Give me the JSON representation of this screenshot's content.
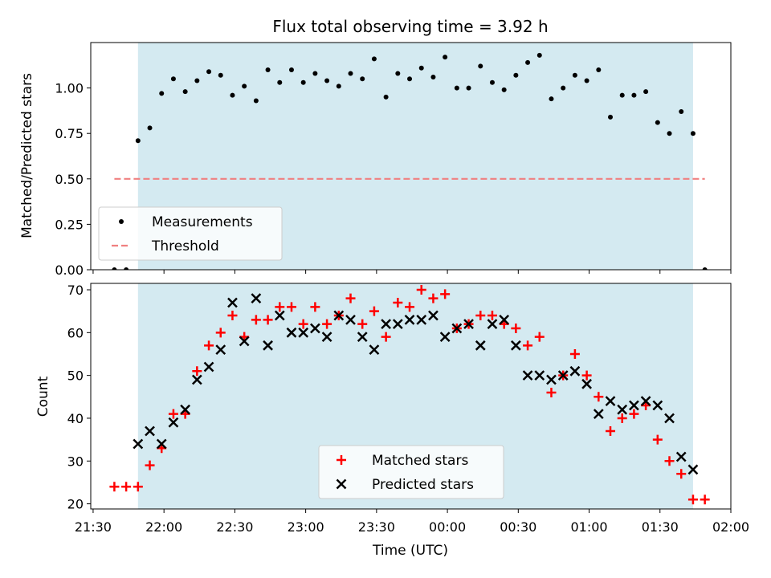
{
  "chart_data": {
    "type": "scatter",
    "title": "Flux total observing time = 3.92 h",
    "xlabel": "Time (UTC)",
    "x_tick_labels": [
      "21:30",
      "22:00",
      "22:30",
      "23:00",
      "23:30",
      "00:00",
      "00:30",
      "01:00",
      "01:30",
      "02:00"
    ],
    "x_unit_note": "minutes after 21:30 UTC",
    "xlim": [
      -1,
      270
    ],
    "shaded_interval": [
      19,
      254
    ],
    "shade_color": "#d4eaf1",
    "panels": [
      {
        "ylabel": "Matched/Predicted stars",
        "ylim": [
          0,
          1.25
        ],
        "y_ticks": [
          0,
          0.25,
          0.5,
          0.75,
          1.0
        ],
        "y_tick_labels": [
          "0.00",
          "0.25",
          "0.50",
          "0.75",
          "1.00"
        ],
        "legend_position": "lower-left",
        "series": [
          {
            "name": "Measurements",
            "marker": "dot",
            "color": "#000000",
            "x": [
              9,
              14,
              19,
              24,
              29,
              34,
              39,
              44,
              49,
              54,
              59,
              64,
              69,
              74,
              79,
              84,
              89,
              94,
              99,
              104,
              109,
              114,
              119,
              124,
              129,
              134,
              139,
              144,
              149,
              154,
              159,
              164,
              169,
              174,
              179,
              184,
              189,
              194,
              199,
              204,
              209,
              214,
              219,
              224,
              229,
              234,
              239,
              244,
              249,
              254,
              259
            ],
            "y": [
              0,
              0,
              0.71,
              0.78,
              0.97,
              1.05,
              0.98,
              1.04,
              1.09,
              1.07,
              0.96,
              1.01,
              0.93,
              1.1,
              1.03,
              1.1,
              1.03,
              1.08,
              1.04,
              1.01,
              1.08,
              1.05,
              1.16,
              0.95,
              1.08,
              1.05,
              1.11,
              1.06,
              1.17,
              1.0,
              1.0,
              1.12,
              1.03,
              0.99,
              1.07,
              1.14,
              1.18,
              0.94,
              1.0,
              1.07,
              1.04,
              1.1,
              0.84,
              0.96,
              0.96,
              0.98,
              0.81,
              0.75,
              0.87,
              0.75,
              0
            ]
          },
          {
            "name": "Threshold",
            "marker": "dashed-line",
            "color": "#f08080",
            "x": [
              9,
              259
            ],
            "y": [
              0.5,
              0.5
            ]
          }
        ]
      },
      {
        "ylabel": "Count",
        "ylim": [
          18.8,
          71.5
        ],
        "y_ticks": [
          20,
          30,
          40,
          50,
          60,
          70
        ],
        "y_tick_labels": [
          "20",
          "30",
          "40",
          "50",
          "60",
          "70"
        ],
        "legend_position": "bottom-center",
        "series": [
          {
            "name": "Matched stars",
            "marker": "plus",
            "color": "#ff0000",
            "x": [
              9,
              14,
              19,
              24,
              29,
              34,
              39,
              44,
              49,
              54,
              59,
              64,
              69,
              74,
              79,
              84,
              89,
              94,
              99,
              104,
              109,
              114,
              119,
              124,
              129,
              134,
              139,
              144,
              149,
              154,
              159,
              164,
              169,
              174,
              179,
              184,
              189,
              194,
              199,
              204,
              209,
              214,
              219,
              224,
              229,
              234,
              239,
              244,
              249,
              254,
              259
            ],
            "y": [
              24,
              24,
              24,
              29,
              33,
              41,
              41,
              51,
              57,
              60,
              64,
              59,
              63,
              63,
              66,
              66,
              62,
              66,
              62,
              64,
              68,
              62,
              65,
              59,
              67,
              66,
              70,
              68,
              69,
              61,
              62,
              64,
              64,
              62,
              61,
              57,
              59,
              46,
              50,
              55,
              50,
              45,
              37,
              40,
              41,
              43,
              35,
              30,
              27,
              21,
              21
            ]
          },
          {
            "name": "Predicted stars",
            "marker": "x",
            "color": "#000000",
            "x": [
              19,
              24,
              29,
              34,
              39,
              44,
              49,
              54,
              59,
              64,
              69,
              74,
              79,
              84,
              89,
              94,
              99,
              104,
              109,
              114,
              119,
              124,
              129,
              134,
              139,
              144,
              149,
              154,
              159,
              164,
              169,
              174,
              179,
              184,
              189,
              194,
              199,
              204,
              209,
              214,
              219,
              224,
              229,
              234,
              239,
              244,
              249,
              254
            ],
            "y": [
              34,
              37,
              34,
              39,
              42,
              49,
              52,
              56,
              67,
              58,
              68,
              57,
              64,
              60,
              60,
              61,
              59,
              64,
              63,
              59,
              56,
              62,
              62,
              63,
              63,
              64,
              59,
              61,
              62,
              57,
              62,
              63,
              57,
              50,
              50,
              49,
              50,
              51,
              48,
              41,
              44,
              42,
              43,
              44,
              43,
              40,
              31,
              28
            ]
          }
        ]
      }
    ]
  }
}
